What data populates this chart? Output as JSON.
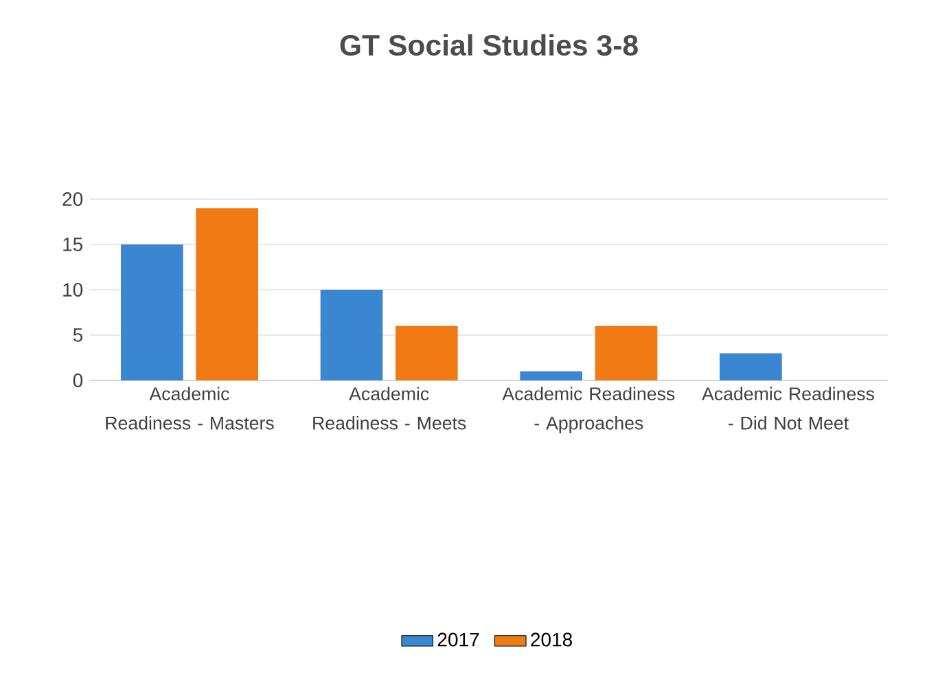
{
  "chart_data": {
    "type": "bar",
    "title": "GT Social Studies 3-8",
    "categories": [
      "Academic Readiness - Masters",
      "Academic Readiness - Meets",
      "Academic Readiness - Approaches",
      "Academic Readiness - Did Not Meet"
    ],
    "series": [
      {
        "name": "2017",
        "color": "#3a86d0",
        "values": [
          15,
          10,
          1,
          3
        ]
      },
      {
        "name": "2018",
        "color": "#f07a14",
        "values": [
          19,
          6,
          6,
          0
        ]
      }
    ],
    "ylim": [
      0,
      20
    ],
    "yticks": [
      0,
      5,
      10,
      15,
      20
    ],
    "grid": "y",
    "legend": "bottom"
  }
}
